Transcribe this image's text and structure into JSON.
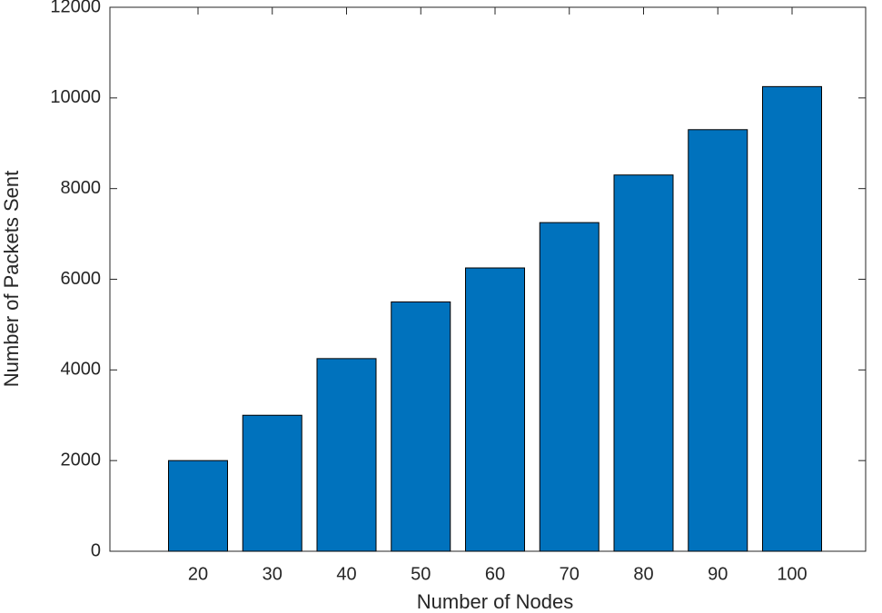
{
  "chart_data": {
    "type": "bar",
    "xlabel": "Number of Nodes",
    "ylabel": "Number of Packets Sent",
    "categories": [
      "20",
      "30",
      "40",
      "50",
      "60",
      "70",
      "80",
      "90",
      "100"
    ],
    "values": [
      2000,
      3000,
      4250,
      5500,
      6250,
      7250,
      8300,
      9300,
      10250
    ],
    "color": "#0072bd",
    "ylim": [
      0,
      12000
    ],
    "yticks": [
      0,
      2000,
      4000,
      6000,
      8000,
      10000,
      12000
    ],
    "grid": false
  }
}
